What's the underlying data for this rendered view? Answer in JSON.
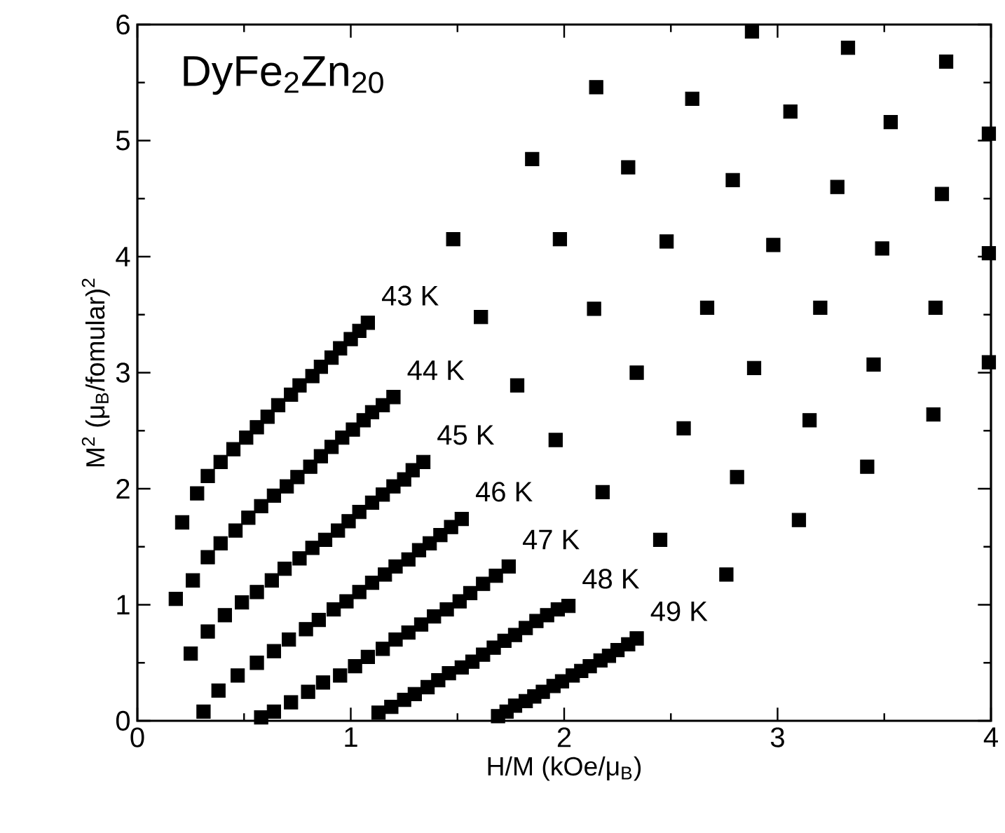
{
  "chart_data": {
    "type": "scatter",
    "title": "DyFe$_{2}$Zn$_{20}$",
    "xlabel": "H/M (kOe/μ$_{B}$)",
    "ylabel": "M$^{2}$ (μ$_{B}$/fomular)$^{2}$",
    "xlim": [
      0,
      4
    ],
    "ylim": [
      0,
      6
    ],
    "xticks": [
      0,
      1,
      2,
      3,
      4
    ],
    "yticks": [
      0,
      1,
      2,
      3,
      4,
      5,
      6
    ],
    "marker": "square",
    "series": [
      {
        "name": "43 K",
        "color": "#000000",
        "x": [
          0.21,
          0.28,
          0.33,
          0.39,
          0.45,
          0.51,
          0.56,
          0.61,
          0.66,
          0.72,
          0.76,
          0.82,
          0.86,
          0.91,
          0.95,
          1.0,
          1.04,
          1.08,
          1.48,
          1.85,
          2.15,
          2.88
        ],
        "values": [
          1.71,
          1.96,
          2.11,
          2.23,
          2.34,
          2.44,
          2.53,
          2.62,
          2.72,
          2.81,
          2.89,
          2.97,
          3.05,
          3.13,
          3.21,
          3.29,
          3.36,
          3.43,
          4.15,
          4.84,
          5.46,
          5.94
        ]
      },
      {
        "name": "44 K",
        "color": "#000000",
        "x": [
          0.18,
          0.26,
          0.33,
          0.39,
          0.46,
          0.52,
          0.58,
          0.64,
          0.7,
          0.75,
          0.81,
          0.86,
          0.91,
          0.96,
          1.01,
          1.06,
          1.1,
          1.15,
          1.2,
          1.61,
          1.98,
          2.3,
          2.6,
          3.33
        ],
        "values": [
          1.05,
          1.21,
          1.41,
          1.53,
          1.64,
          1.75,
          1.85,
          1.94,
          2.02,
          2.1,
          2.19,
          2.28,
          2.36,
          2.44,
          2.51,
          2.59,
          2.66,
          2.72,
          2.79,
          3.48,
          4.15,
          4.77,
          5.36,
          5.8
        ]
      },
      {
        "name": "45 K",
        "color": "#000000",
        "x": [
          0.25,
          0.33,
          0.41,
          0.49,
          0.56,
          0.63,
          0.69,
          0.76,
          0.82,
          0.88,
          0.94,
          0.99,
          1.04,
          1.1,
          1.15,
          1.2,
          1.25,
          1.29,
          1.34,
          1.78,
          2.14,
          2.48,
          2.79,
          3.06,
          3.79
        ],
        "values": [
          0.58,
          0.77,
          0.91,
          1.02,
          1.11,
          1.21,
          1.31,
          1.4,
          1.49,
          1.56,
          1.64,
          1.72,
          1.8,
          1.88,
          1.95,
          2.02,
          2.08,
          2.16,
          2.23,
          2.89,
          3.55,
          4.13,
          4.66,
          5.25,
          5.68
        ]
      },
      {
        "name": "46 K",
        "color": "#000000",
        "x": [
          0.31,
          0.38,
          0.47,
          0.56,
          0.64,
          0.71,
          0.79,
          0.85,
          0.92,
          0.98,
          1.04,
          1.1,
          1.16,
          1.21,
          1.27,
          1.32,
          1.37,
          1.42,
          1.47,
          1.52,
          1.96,
          2.34,
          2.67,
          2.98,
          3.28,
          3.53
        ],
        "values": [
          0.08,
          0.26,
          0.39,
          0.5,
          0.6,
          0.7,
          0.79,
          0.87,
          0.96,
          1.03,
          1.11,
          1.19,
          1.26,
          1.33,
          1.39,
          1.47,
          1.53,
          1.6,
          1.67,
          1.74,
          2.42,
          3.0,
          3.56,
          4.1,
          4.6,
          5.16
        ]
      },
      {
        "name": "47 K",
        "color": "#000000",
        "x": [
          0.58,
          0.64,
          0.72,
          0.8,
          0.87,
          0.95,
          1.02,
          1.08,
          1.15,
          1.21,
          1.27,
          1.33,
          1.39,
          1.45,
          1.51,
          1.56,
          1.62,
          1.68,
          1.74,
          2.18,
          2.56,
          2.89,
          3.2,
          3.49,
          3.77,
          3.99
        ],
        "values": [
          0.03,
          0.08,
          0.16,
          0.25,
          0.33,
          0.39,
          0.47,
          0.55,
          0.62,
          0.7,
          0.76,
          0.83,
          0.9,
          0.96,
          1.03,
          1.1,
          1.18,
          1.25,
          1.33,
          1.97,
          2.52,
          3.04,
          3.56,
          4.07,
          4.54,
          5.06
        ]
      },
      {
        "name": "48 K",
        "color": "#000000",
        "x": [
          1.13,
          1.19,
          1.25,
          1.3,
          1.36,
          1.41,
          1.46,
          1.52,
          1.57,
          1.62,
          1.67,
          1.72,
          1.77,
          1.82,
          1.87,
          1.92,
          1.97,
          2.02,
          2.45,
          2.81,
          3.15,
          3.45,
          3.74,
          3.99
        ],
        "values": [
          0.07,
          0.12,
          0.18,
          0.23,
          0.29,
          0.35,
          0.41,
          0.46,
          0.51,
          0.57,
          0.63,
          0.69,
          0.74,
          0.8,
          0.86,
          0.91,
          0.96,
          0.99,
          1.56,
          2.1,
          2.59,
          3.07,
          3.56,
          4.03
        ]
      },
      {
        "name": "49 K",
        "color": "#000000",
        "x": [
          1.69,
          1.73,
          1.77,
          1.82,
          1.86,
          1.9,
          1.95,
          1.99,
          2.04,
          2.08,
          2.12,
          2.17,
          2.21,
          2.25,
          2.3,
          2.34,
          2.76,
          3.1,
          3.42,
          3.73,
          3.99
        ],
        "values": [
          0.04,
          0.08,
          0.13,
          0.17,
          0.21,
          0.25,
          0.3,
          0.34,
          0.39,
          0.43,
          0.47,
          0.52,
          0.56,
          0.61,
          0.66,
          0.71,
          1.26,
          1.73,
          2.19,
          2.64,
          3.09
        ]
      }
    ]
  }
}
